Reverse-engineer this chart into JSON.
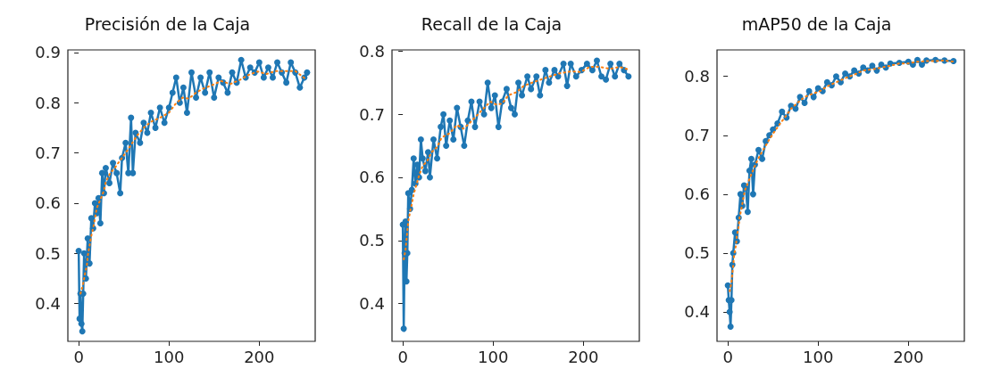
{
  "chart_data": [
    {
      "type": "line",
      "title": "Precisión de la Caja",
      "xlim": [
        -12,
        262
      ],
      "xticks": [
        0,
        100,
        200
      ],
      "ylim": [
        0.325,
        0.905
      ],
      "yticks": [
        0.4,
        0.5,
        0.6,
        0.7,
        0.8,
        0.9
      ],
      "grid": false,
      "series": [
        {
          "color": "#1f77b4",
          "marker": "circle",
          "line_style": "solid",
          "x": [
            0,
            1,
            2,
            3,
            4,
            5,
            6,
            8,
            10,
            12,
            14,
            16,
            18,
            20,
            22,
            24,
            26,
            28,
            30,
            34,
            38,
            42,
            46,
            48,
            52,
            55,
            58,
            60,
            63,
            68,
            72,
            76,
            80,
            85,
            90,
            95,
            100,
            104,
            108,
            112,
            116,
            120,
            125,
            130,
            135,
            140,
            145,
            150,
            155,
            160,
            165,
            170,
            175,
            180,
            185,
            190,
            195,
            200,
            205,
            210,
            215,
            220,
            225,
            230,
            235,
            240,
            245,
            250,
            253
          ],
          "values": [
            0.505,
            0.37,
            0.42,
            0.36,
            0.345,
            0.42,
            0.5,
            0.45,
            0.53,
            0.48,
            0.57,
            0.55,
            0.6,
            0.58,
            0.61,
            0.56,
            0.66,
            0.62,
            0.67,
            0.64,
            0.68,
            0.66,
            0.62,
            0.69,
            0.72,
            0.66,
            0.77,
            0.66,
            0.74,
            0.72,
            0.76,
            0.74,
            0.78,
            0.75,
            0.79,
            0.76,
            0.79,
            0.82,
            0.85,
            0.8,
            0.83,
            0.78,
            0.86,
            0.81,
            0.85,
            0.82,
            0.86,
            0.81,
            0.85,
            0.84,
            0.82,
            0.86,
            0.84,
            0.885,
            0.85,
            0.87,
            0.86,
            0.88,
            0.85,
            0.87,
            0.85,
            0.88,
            0.86,
            0.84,
            0.88,
            0.86,
            0.83,
            0.85,
            0.86
          ]
        },
        {
          "color": "#ff7f0e",
          "marker": "none",
          "line_style": "dotted",
          "x": [
            2,
            5,
            7,
            9,
            10,
            12,
            14,
            16,
            18,
            20,
            24,
            28,
            30,
            35,
            40,
            45,
            52,
            58,
            64,
            72,
            80,
            90,
            100,
            107,
            115,
            122,
            130,
            138,
            148,
            158,
            168,
            178,
            188,
            198,
            208,
            218,
            228,
            240,
            250
          ],
          "values": [
            0.42,
            0.44,
            0.46,
            0.475,
            0.495,
            0.515,
            0.535,
            0.55,
            0.57,
            0.59,
            0.607,
            0.625,
            0.642,
            0.66,
            0.67,
            0.683,
            0.7,
            0.716,
            0.733,
            0.75,
            0.762,
            0.77,
            0.78,
            0.797,
            0.81,
            0.808,
            0.82,
            0.828,
            0.835,
            0.843,
            0.837,
            0.845,
            0.855,
            0.862,
            0.857,
            0.863,
            0.863,
            0.863,
            0.849
          ]
        }
      ]
    },
    {
      "type": "line",
      "title": "Recall de la Caja",
      "xlim": [
        -12,
        262
      ],
      "xticks": [
        0,
        100,
        200
      ],
      "ylim": [
        0.34,
        0.802
      ],
      "yticks": [
        0.4,
        0.5,
        0.6,
        0.7,
        0.8
      ],
      "grid": false,
      "series": [
        {
          "color": "#1f77b4",
          "marker": "circle",
          "line_style": "solid",
          "x": [
            0,
            1,
            2,
            3,
            4,
            5,
            6,
            8,
            10,
            12,
            14,
            16,
            18,
            20,
            22,
            25,
            28,
            30,
            34,
            38,
            42,
            45,
            48,
            52,
            56,
            60,
            64,
            68,
            72,
            76,
            80,
            85,
            90,
            94,
            98,
            102,
            106,
            110,
            115,
            120,
            124,
            128,
            132,
            138,
            142,
            148,
            152,
            158,
            162,
            168,
            172,
            178,
            182,
            186,
            192,
            198,
            204,
            210,
            215,
            220,
            225,
            230,
            235,
            240,
            245,
            250
          ],
          "values": [
            0.525,
            0.36,
            0.48,
            0.53,
            0.435,
            0.48,
            0.575,
            0.55,
            0.58,
            0.63,
            0.59,
            0.62,
            0.6,
            0.66,
            0.63,
            0.61,
            0.64,
            0.6,
            0.66,
            0.63,
            0.68,
            0.7,
            0.65,
            0.69,
            0.66,
            0.71,
            0.68,
            0.65,
            0.69,
            0.72,
            0.68,
            0.72,
            0.7,
            0.75,
            0.71,
            0.73,
            0.68,
            0.72,
            0.74,
            0.71,
            0.7,
            0.75,
            0.73,
            0.76,
            0.74,
            0.76,
            0.73,
            0.77,
            0.75,
            0.77,
            0.76,
            0.78,
            0.745,
            0.78,
            0.76,
            0.77,
            0.78,
            0.77,
            0.785,
            0.76,
            0.755,
            0.78,
            0.76,
            0.78,
            0.77,
            0.76
          ]
        },
        {
          "color": "#ff7f0e",
          "marker": "none",
          "line_style": "dotted",
          "x": [
            1,
            3,
            4,
            5,
            6,
            8,
            10,
            12,
            15,
            18,
            22,
            27,
            32,
            38,
            43,
            52,
            60,
            67,
            74,
            82,
            90,
            97,
            104,
            110,
            117,
            126,
            134,
            143,
            153,
            163,
            174,
            186,
            197,
            207,
            218,
            230,
            240,
            250
          ],
          "values": [
            0.47,
            0.485,
            0.5,
            0.515,
            0.53,
            0.545,
            0.558,
            0.573,
            0.588,
            0.603,
            0.618,
            0.626,
            0.64,
            0.648,
            0.663,
            0.67,
            0.683,
            0.677,
            0.686,
            0.698,
            0.71,
            0.72,
            0.715,
            0.717,
            0.73,
            0.735,
            0.745,
            0.75,
            0.755,
            0.76,
            0.765,
            0.768,
            0.767,
            0.775,
            0.775,
            0.772,
            0.775,
            0.771
          ]
        }
      ]
    },
    {
      "type": "line",
      "title": "mAP50 de la Caja",
      "xlim": [
        -12,
        262
      ],
      "xticks": [
        0,
        100,
        200
      ],
      "ylim": [
        0.35,
        0.845
      ],
      "yticks": [
        0.4,
        0.5,
        0.6,
        0.7,
        0.8
      ],
      "grid": false,
      "series": [
        {
          "color": "#1f77b4",
          "marker": "circle",
          "line_style": "solid",
          "x": [
            0,
            1,
            2,
            3,
            4,
            5,
            6,
            8,
            10,
            12,
            14,
            16,
            18,
            20,
            22,
            24,
            26,
            28,
            30,
            34,
            38,
            42,
            46,
            50,
            55,
            60,
            65,
            70,
            75,
            80,
            85,
            90,
            95,
            100,
            105,
            110,
            115,
            120,
            125,
            130,
            135,
            140,
            145,
            150,
            155,
            160,
            165,
            170,
            175,
            180,
            190,
            200,
            205,
            210,
            215,
            220,
            230,
            240,
            250
          ],
          "values": [
            0.445,
            0.42,
            0.4,
            0.375,
            0.42,
            0.48,
            0.5,
            0.535,
            0.52,
            0.56,
            0.6,
            0.58,
            0.615,
            0.61,
            0.57,
            0.64,
            0.66,
            0.6,
            0.65,
            0.675,
            0.66,
            0.69,
            0.7,
            0.71,
            0.72,
            0.74,
            0.73,
            0.75,
            0.745,
            0.765,
            0.755,
            0.775,
            0.765,
            0.78,
            0.775,
            0.79,
            0.785,
            0.8,
            0.79,
            0.805,
            0.8,
            0.81,
            0.805,
            0.815,
            0.81,
            0.818,
            0.81,
            0.82,
            0.815,
            0.822,
            0.823,
            0.825,
            0.82,
            0.828,
            0.82,
            0.827,
            0.828,
            0.827,
            0.826
          ]
        },
        {
          "color": "#ff7f0e",
          "marker": "none",
          "line_style": "dotted",
          "x": [
            2,
            4,
            5,
            6,
            7,
            9,
            10,
            12,
            13,
            15,
            17,
            19,
            23,
            27,
            31,
            36,
            41,
            46,
            52,
            58,
            64,
            70,
            77,
            85,
            93,
            102,
            110,
            120,
            130,
            140,
            150,
            160,
            170,
            180,
            190,
            200,
            210,
            220,
            230,
            240,
            250
          ],
          "values": [
            0.435,
            0.45,
            0.465,
            0.48,
            0.497,
            0.513,
            0.53,
            0.545,
            0.56,
            0.575,
            0.592,
            0.607,
            0.622,
            0.637,
            0.652,
            0.667,
            0.68,
            0.693,
            0.707,
            0.72,
            0.732,
            0.745,
            0.755,
            0.765,
            0.77,
            0.775,
            0.783,
            0.79,
            0.797,
            0.803,
            0.81,
            0.812,
            0.815,
            0.818,
            0.822,
            0.822,
            0.825,
            0.826,
            0.826,
            0.827,
            0.825
          ]
        }
      ]
    }
  ]
}
